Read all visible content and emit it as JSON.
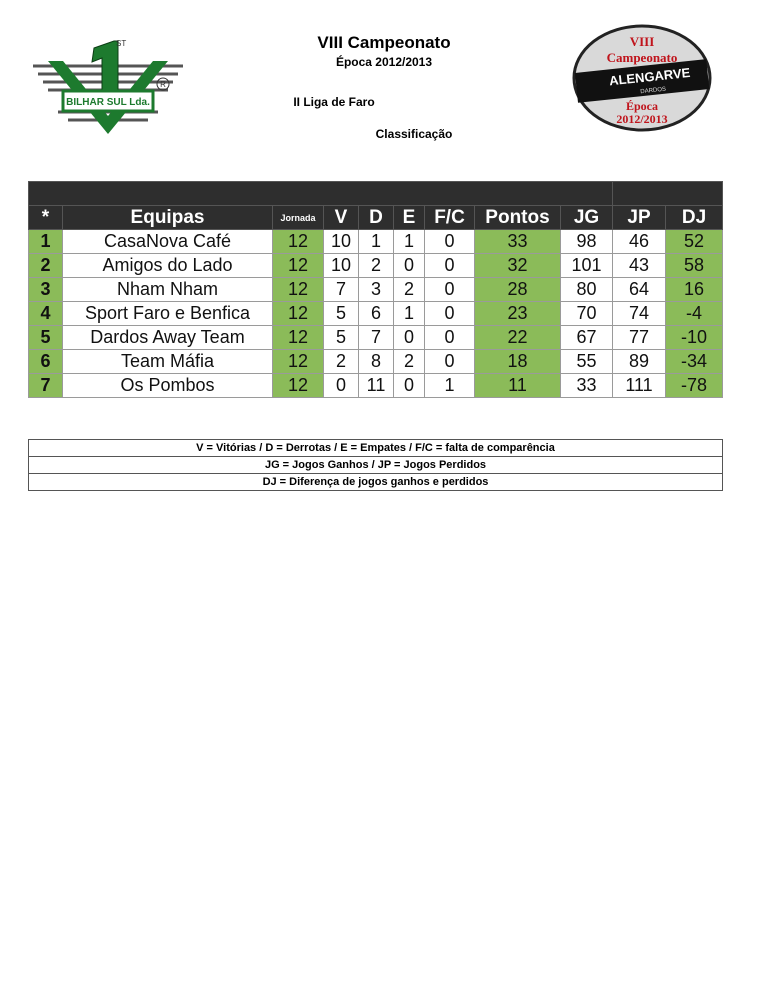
{
  "header": {
    "title": "VIII Campeonato",
    "season": "Época 2012/2013",
    "league": "II Liga de Faro",
    "section": "Classificação"
  },
  "logos": {
    "left": "1st BILHAR SUL Lda. ®",
    "right": "VIII Campeonato ALENGARVE® DARDOS Época 2012/2013"
  },
  "table": {
    "columns": [
      "*",
      "Equipas",
      "Jornada",
      "V",
      "D",
      "E",
      "F/C",
      "Pontos",
      "JG",
      "JP",
      "DJ"
    ],
    "rows": [
      [
        "1",
        "CasaNova Café",
        "12",
        "10",
        "1",
        "1",
        "0",
        "33",
        "98",
        "46",
        "52"
      ],
      [
        "2",
        "Amigos do Lado",
        "12",
        "10",
        "2",
        "0",
        "0",
        "32",
        "101",
        "43",
        "58"
      ],
      [
        "3",
        "Nham Nham",
        "12",
        "7",
        "3",
        "2",
        "0",
        "28",
        "80",
        "64",
        "16"
      ],
      [
        "4",
        "Sport Faro e Benfica",
        "12",
        "5",
        "6",
        "1",
        "0",
        "23",
        "70",
        "74",
        "-4"
      ],
      [
        "5",
        "Dardos Away Team",
        "12",
        "5",
        "7",
        "0",
        "0",
        "22",
        "67",
        "77",
        "-10"
      ],
      [
        "6",
        "Team Máfia",
        "12",
        "2",
        "8",
        "2",
        "0",
        "18",
        "55",
        "89",
        "-34"
      ],
      [
        "7",
        "Os Pombos",
        "12",
        "0",
        "11",
        "0",
        "1",
        "11",
        "33",
        "111",
        "-78"
      ]
    ]
  },
  "legend": [
    "V = Vitórias / D = Derrotas / E = Empates / F/C = falta de comparência",
    "JG = Jogos Ganhos / JP = Jogos Perdidos",
    "DJ = Diferença de jogos ganhos e perdidos"
  ],
  "colors": {
    "header_bg": "#2e2e2e",
    "highlight_green": "#8bbb59"
  }
}
